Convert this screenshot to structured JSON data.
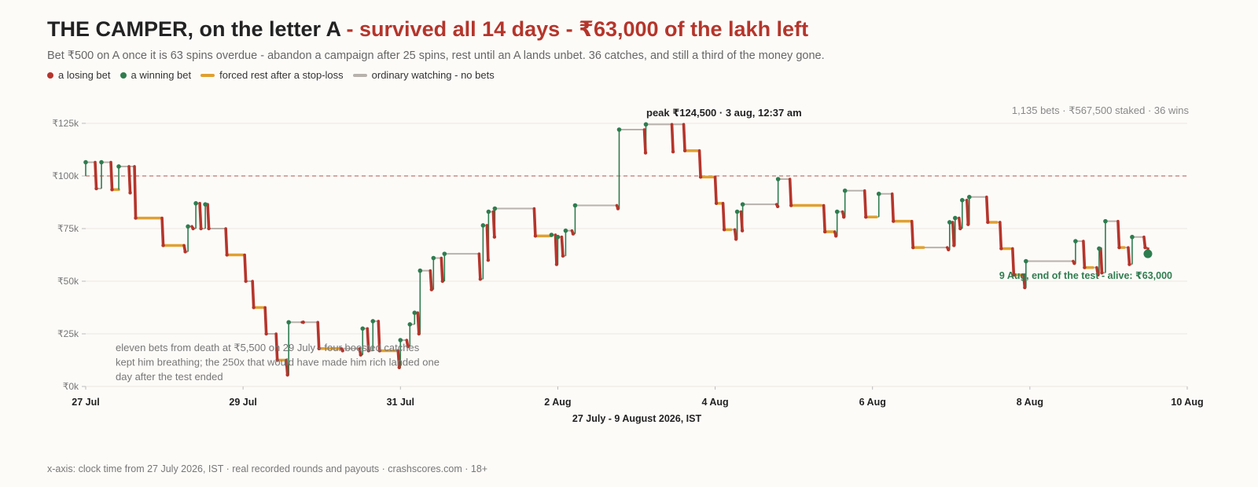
{
  "header": {
    "title_main": "THE CAMPER, on the letter A",
    "title_accent": " - survived all 14 days - ₹63,000 of the lakh left",
    "subtitle": "Bet ₹500 on A once it is 63 spins overdue - abandon a campaign after 25 spins, rest until an A lands unbet. 36 catches, and still a third of the money gone."
  },
  "legend": [
    {
      "label": "a losing bet",
      "color": "#b5352b",
      "shape": "dot"
    },
    {
      "label": "a winning bet",
      "color": "#2e7d4f",
      "shape": "dot"
    },
    {
      "label": "forced rest after a stop-loss",
      "color": "#e0a030",
      "shape": "bar"
    },
    {
      "label": "ordinary watching - no bets",
      "color": "#b8b2ac",
      "shape": "bar"
    }
  ],
  "footer": "x-axis: clock time from 27 July 2026, IST · real recorded rounds and payouts · crashscores.com · 18+",
  "chart_data": {
    "type": "line",
    "xlabel": "27 July - 9 August 2026, IST",
    "ylabel": "",
    "xlim_days": [
      27,
      41
    ],
    "ylim": [
      0,
      125000
    ],
    "yticks": [
      0,
      25000,
      50000,
      75000,
      100000,
      125000
    ],
    "ytick_labels": [
      "₹0k",
      "₹25k",
      "₹50k",
      "₹75k",
      "₹100k",
      "₹125k"
    ],
    "xticks": [
      27,
      29,
      31,
      33,
      35,
      37,
      39,
      41
    ],
    "xtick_labels": [
      "27 Jul",
      "29 Jul",
      "31 Jul",
      "2 Aug",
      "4 Aug",
      "6 Aug",
      "8 Aug",
      "10 Aug"
    ],
    "reference_line": 100000,
    "stats": "1,135 bets · ₹567,500 staked · 36 wins",
    "peak_label": "peak ₹124,500 · 3 aug, 12:37 am",
    "end_label": "9 Aug, end of the test - alive: ₹63,000",
    "low_note": "eleven bets from death at ₹5,500 on 29 July - four boosted catches kept him breathing; the 250x that would have made him rich landed one day after the test ended",
    "colors": {
      "loss": "#b5352b",
      "win": "#2e7d4f",
      "rest": "#e0a030",
      "watch": "#b8b2ac",
      "ref": "#c98c86"
    },
    "series": [
      {
        "events": [
          [
            "w",
            27.0,
            100000,
            106500
          ],
          [
            "l",
            27.12,
            106500,
            94000
          ],
          [
            "w",
            27.2,
            94000,
            106500
          ],
          [
            "l",
            27.32,
            106500,
            93500
          ],
          [
            "r",
            27.33,
            27.42,
            93500
          ],
          [
            "w",
            27.42,
            93500,
            104500
          ],
          [
            "l",
            27.55,
            104500,
            92000
          ],
          [
            "l",
            27.62,
            104500,
            80000
          ],
          [
            "r",
            27.65,
            27.95,
            80000
          ],
          [
            "l",
            27.97,
            80000,
            67000
          ],
          [
            "r",
            27.98,
            28.25,
            67000
          ],
          [
            "l",
            28.25,
            67000,
            64000
          ],
          [
            "w",
            28.3,
            64000,
            76000
          ],
          [
            "l",
            28.35,
            76000,
            75000
          ],
          [
            "w",
            28.4,
            75000,
            87000
          ],
          [
            "l",
            28.45,
            87000,
            75000
          ],
          [
            "w",
            28.52,
            75000,
            86500
          ],
          [
            "l",
            28.55,
            86500,
            75000
          ],
          [
            "l",
            28.78,
            75000,
            62500
          ],
          [
            "r",
            28.8,
            29.0,
            62500
          ],
          [
            "l",
            29.02,
            62500,
            50000
          ],
          [
            "l",
            29.12,
            50000,
            37500
          ],
          [
            "r",
            29.14,
            29.28,
            37500
          ],
          [
            "l",
            29.28,
            37500,
            25000
          ],
          [
            "l",
            29.42,
            25000,
            12500
          ],
          [
            "r",
            29.43,
            29.55,
            12500
          ],
          [
            "l",
            29.55,
            12500,
            5500
          ],
          [
            "w",
            29.58,
            5500,
            30500
          ],
          [
            "l",
            29.75,
            30500,
            30500
          ],
          [
            "l",
            29.95,
            30500,
            18000
          ],
          [
            "r",
            29.97,
            30.25,
            18000
          ],
          [
            "l",
            30.25,
            18000,
            17000
          ],
          [
            "l",
            30.48,
            18000,
            15000
          ],
          [
            "w",
            30.52,
            15000,
            27500
          ],
          [
            "l",
            30.58,
            27500,
            17000
          ],
          [
            "w",
            30.65,
            17000,
            31000
          ],
          [
            "l",
            30.72,
            31000,
            17000
          ],
          [
            "r",
            30.74,
            30.96,
            17000
          ],
          [
            "l",
            30.97,
            17000,
            9000
          ],
          [
            "w",
            31.0,
            9000,
            22000
          ],
          [
            "l",
            31.08,
            22000,
            19000
          ],
          [
            "w",
            31.12,
            19000,
            29500
          ],
          [
            "w",
            31.18,
            29500,
            35000
          ],
          [
            "l",
            31.22,
            35000,
            25000
          ],
          [
            "w",
            31.25,
            25000,
            55000
          ],
          [
            "l",
            31.38,
            55000,
            46000
          ],
          [
            "w",
            31.42,
            46000,
            61000
          ],
          [
            "l",
            31.52,
            61000,
            50000
          ],
          [
            "w",
            31.56,
            50000,
            63000
          ],
          [
            "l",
            32.0,
            63000,
            51000
          ],
          [
            "w",
            32.05,
            51000,
            76500
          ],
          [
            "l",
            32.1,
            76500,
            60000
          ],
          [
            "w",
            32.12,
            60000,
            83000
          ],
          [
            "l",
            32.18,
            83000,
            71000
          ],
          [
            "w",
            32.2,
            71000,
            84500
          ],
          [
            "l",
            32.7,
            84500,
            71500
          ],
          [
            "r",
            32.72,
            32.9,
            71500
          ],
          [
            "w",
            32.92,
            71500,
            72000
          ],
          [
            "l",
            32.97,
            72000,
            58000
          ],
          [
            "w",
            33.0,
            58000,
            71000
          ],
          [
            "l",
            33.05,
            71000,
            62000
          ],
          [
            "w",
            33.1,
            62000,
            74000
          ],
          [
            "l",
            33.18,
            74000,
            72500
          ],
          [
            "w",
            33.22,
            72500,
            86000
          ],
          [
            "l",
            33.75,
            86000,
            84500
          ],
          [
            "w",
            33.78,
            84500,
            122000
          ],
          [
            "l",
            34.1,
            122000,
            111000
          ],
          [
            "w",
            34.12,
            111000,
            124500
          ],
          [
            "l",
            34.45,
            124500,
            111500
          ],
          [
            "l",
            34.6,
            124500,
            112000
          ],
          [
            "r",
            34.62,
            34.78,
            112000
          ],
          [
            "l",
            34.8,
            112000,
            99500
          ],
          [
            "r",
            34.82,
            35.0,
            99500
          ],
          [
            "l",
            35.0,
            99500,
            87000
          ],
          [
            "r",
            35.02,
            35.08,
            87000
          ],
          [
            "l",
            35.1,
            87000,
            74500
          ],
          [
            "r",
            35.12,
            35.2,
            74500
          ],
          [
            "l",
            35.25,
            74500,
            70000
          ],
          [
            "w",
            35.28,
            70000,
            83000
          ],
          [
            "l",
            35.33,
            83000,
            74000
          ],
          [
            "w",
            35.35,
            74000,
            86500
          ],
          [
            "l",
            35.78,
            86500,
            85500
          ],
          [
            "w",
            35.8,
            85500,
            98500
          ],
          [
            "l",
            35.95,
            98500,
            86000
          ],
          [
            "r",
            35.97,
            36.35,
            86000
          ],
          [
            "l",
            36.38,
            86000,
            73500
          ],
          [
            "r",
            36.4,
            36.5,
            73500
          ],
          [
            "l",
            36.52,
            73500,
            71500
          ],
          [
            "w",
            36.55,
            71500,
            83000
          ],
          [
            "l",
            36.62,
            83000,
            80500
          ],
          [
            "w",
            36.65,
            80500,
            93000
          ],
          [
            "l",
            36.9,
            93000,
            80500
          ],
          [
            "r",
            36.92,
            37.05,
            80500
          ],
          [
            "w",
            37.08,
            80500,
            91500
          ],
          [
            "l",
            37.25,
            91500,
            78500
          ],
          [
            "r",
            37.27,
            37.48,
            78500
          ],
          [
            "l",
            37.5,
            78500,
            66000
          ],
          [
            "r",
            37.52,
            37.65,
            66000
          ],
          [
            "l",
            37.95,
            66000,
            65000
          ],
          [
            "w",
            37.98,
            65000,
            78000
          ],
          [
            "l",
            38.02,
            78000,
            67000
          ],
          [
            "w",
            38.05,
            67000,
            80000
          ],
          [
            "l",
            38.1,
            80000,
            75000
          ],
          [
            "w",
            38.14,
            75000,
            88500
          ],
          [
            "l",
            38.2,
            88500,
            77000
          ],
          [
            "w",
            38.23,
            77000,
            90000
          ],
          [
            "l",
            38.45,
            90000,
            78000
          ],
          [
            "r",
            38.47,
            38.58,
            78000
          ],
          [
            "l",
            38.62,
            78000,
            65500
          ],
          [
            "r",
            38.64,
            38.75,
            65500
          ],
          [
            "l",
            38.78,
            65500,
            53000
          ],
          [
            "r",
            38.8,
            38.9,
            53000
          ],
          [
            "l",
            38.92,
            53000,
            47000
          ],
          [
            "w",
            38.95,
            47000,
            59500
          ],
          [
            "l",
            39.55,
            59500,
            58500
          ],
          [
            "w",
            39.58,
            58500,
            69000
          ],
          [
            "l",
            39.68,
            69000,
            56500
          ],
          [
            "r",
            39.7,
            39.8,
            56500
          ],
          [
            "l",
            39.85,
            56500,
            53000
          ],
          [
            "w",
            39.88,
            53000,
            65500
          ],
          [
            "l",
            39.9,
            65500,
            54000
          ],
          [
            "w",
            39.96,
            54000,
            78500
          ],
          [
            "l",
            40.12,
            78500,
            66000
          ],
          [
            "r",
            40.14,
            40.2,
            66000
          ],
          [
            "l",
            40.25,
            66000,
            58000
          ],
          [
            "w",
            40.3,
            58000,
            71000
          ],
          [
            "l",
            40.45,
            71000,
            66000
          ],
          [
            "e",
            40.5,
            63000
          ]
        ]
      }
    ]
  }
}
